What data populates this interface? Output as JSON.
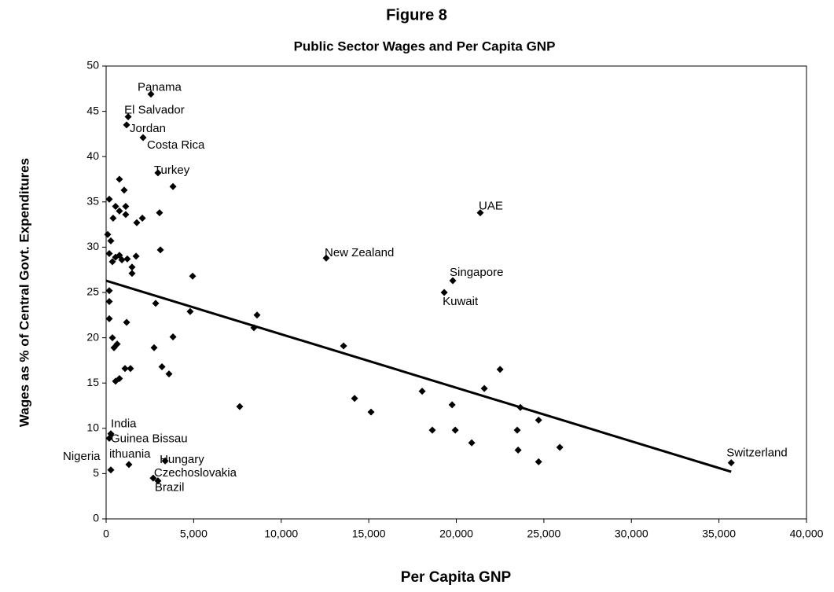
{
  "chart_data": {
    "type": "scatter",
    "title": "Figure 8",
    "subtitle": "Public Sector Wages and Per Capita GNP",
    "xlabel": "Per Capita GNP",
    "ylabel": "Wages as % of Central Govt. Expenditures",
    "xlim": [
      0,
      40000
    ],
    "ylim": [
      0,
      50
    ],
    "xticks": [
      0,
      {
        "value": 5000,
        "label": "5,000"
      },
      {
        "value": 10000,
        "label": "10,000"
      },
      {
        "value": 15000,
        "label": "15,000"
      },
      {
        "value": 20000,
        "label": "20,000"
      },
      {
        "value": 25000,
        "label": "25,000"
      },
      {
        "value": 30000,
        "label": "30,000"
      },
      {
        "value": 35000,
        "label": "35,000"
      },
      {
        "value": 40000,
        "label": "40,000"
      }
    ],
    "yticks": [
      0,
      5,
      10,
      15,
      20,
      25,
      30,
      35,
      40,
      45,
      50
    ],
    "color": "#000000",
    "x": [
      2560,
      1260,
      1170,
      2110,
      2960,
      3820,
      760,
      1030,
      180,
      540,
      1120,
      760,
      400,
      1120,
      2070,
      1750,
      3050,
      90,
      270,
      3100,
      180,
      540,
      760,
      1210,
      1710,
      360,
      900,
      1480,
      1480,
      4940,
      12570,
      21370,
      19800,
      19310,
      180,
      180,
      2830,
      4800,
      8620,
      8440,
      180,
      1170,
      3820,
      360,
      630,
      450,
      2740,
      13560,
      1080,
      1390,
      3190,
      3590,
      760,
      540,
      22500,
      21600,
      18050,
      7630,
      23660,
      14190,
      15130,
      19760,
      18630,
      19940,
      23480,
      24700,
      20880,
      23530,
      25910,
      24700,
      270,
      180,
      270,
      1300,
      3370,
      2690,
      2960,
      35700
    ],
    "y": [
      46.9,
      44.4,
      43.5,
      42.1,
      38.2,
      36.7,
      37.5,
      36.3,
      35.3,
      34.5,
      34.5,
      34.0,
      33.2,
      33.6,
      33.2,
      32.7,
      33.8,
      31.4,
      30.7,
      29.7,
      29.3,
      28.9,
      29.1,
      28.7,
      29.0,
      28.4,
      28.6,
      27.8,
      27.1,
      26.8,
      28.8,
      33.8,
      26.3,
      25.0,
      25.2,
      24.0,
      23.8,
      22.9,
      22.5,
      21.1,
      22.1,
      21.7,
      20.1,
      20.0,
      19.3,
      18.9,
      18.9,
      19.1,
      16.6,
      16.6,
      16.8,
      16.0,
      15.5,
      15.2,
      16.5,
      14.4,
      14.1,
      12.4,
      12.3,
      13.3,
      11.8,
      12.6,
      9.8,
      9.8,
      9.8,
      10.9,
      8.4,
      7.6,
      7.9,
      6.3,
      9.4,
      8.9,
      5.4,
      6.0,
      6.4,
      4.5,
      4.2,
      6.2
    ],
    "labels": [
      "Panama",
      "El Salvador",
      "Jordan",
      "Costa Rica",
      "Turkey",
      null,
      null,
      null,
      null,
      null,
      null,
      null,
      null,
      null,
      null,
      null,
      null,
      null,
      null,
      null,
      null,
      null,
      null,
      null,
      null,
      null,
      null,
      null,
      null,
      null,
      "New Zealand",
      "UAE",
      "Singapore",
      "Kuwait",
      null,
      null,
      null,
      null,
      null,
      null,
      null,
      null,
      null,
      null,
      null,
      null,
      null,
      null,
      null,
      null,
      null,
      null,
      null,
      null,
      null,
      null,
      null,
      null,
      null,
      null,
      null,
      null,
      null,
      null,
      null,
      null,
      null,
      null,
      null,
      null,
      "India",
      "Guinea Bissau",
      "Nigeria",
      "ithuania",
      "Hungary",
      "Czechoslovakia",
      "Brazil",
      "Switzerland"
    ],
    "trendline": {
      "x": [
        0,
        35700
      ],
      "y": [
        26.3,
        5.2
      ]
    }
  }
}
